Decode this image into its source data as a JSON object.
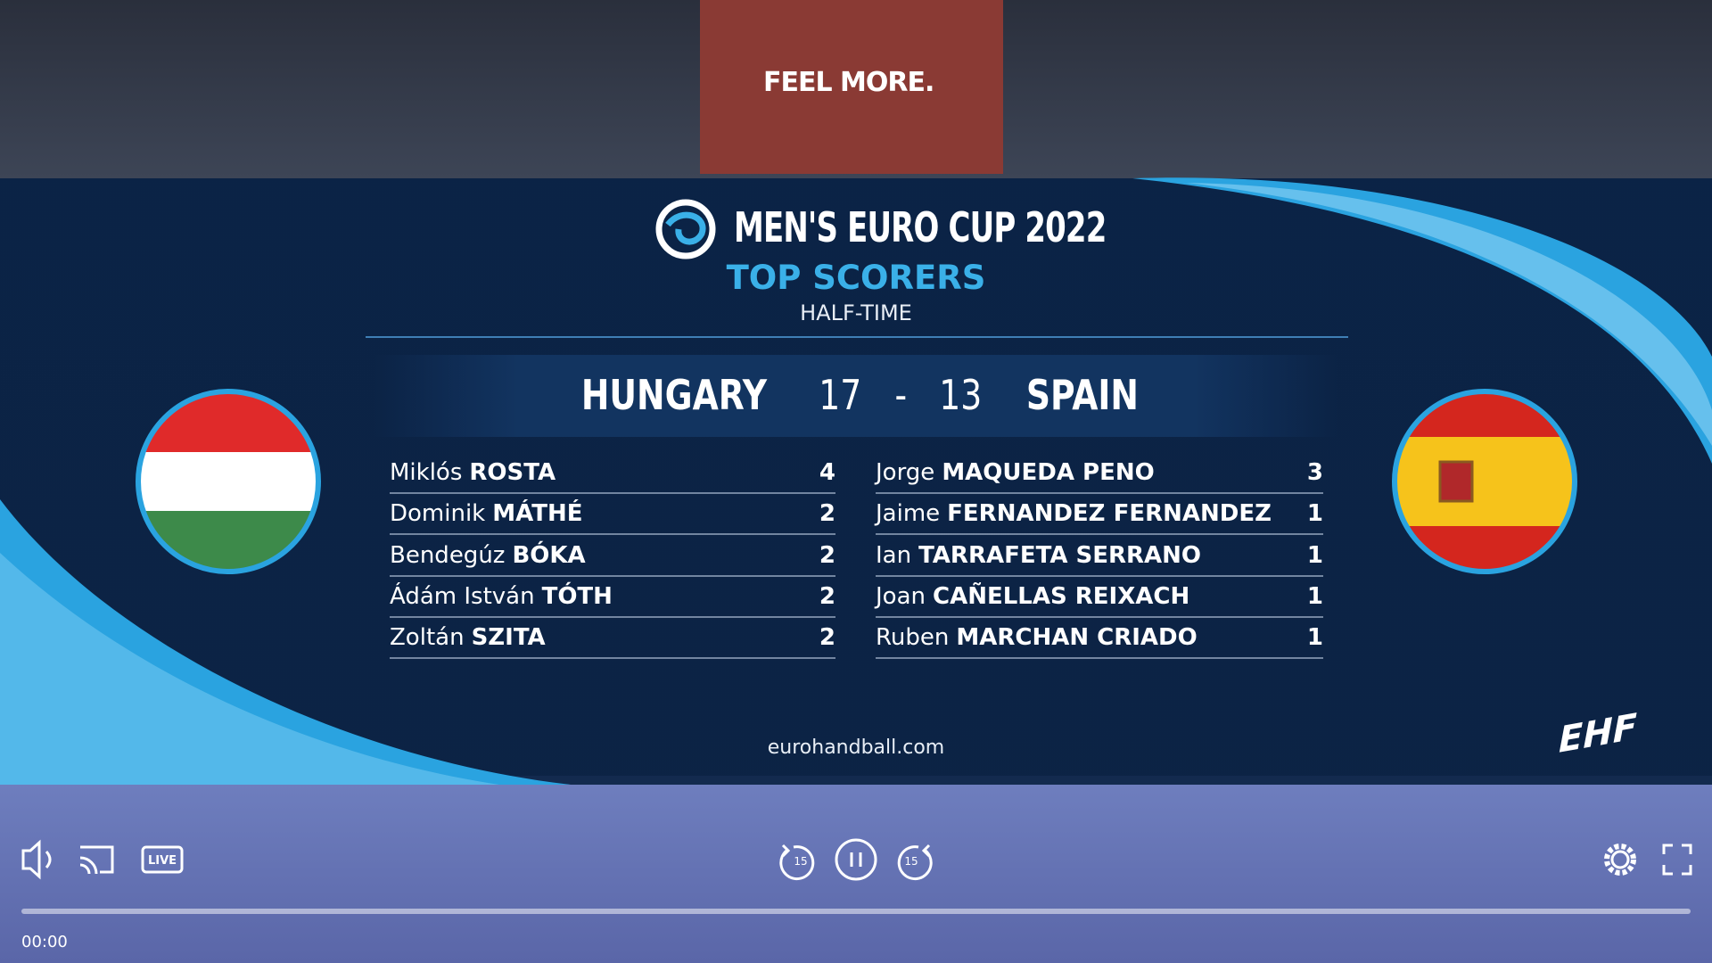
{
  "header": {
    "screen_text": "FEEL MORE.",
    "title": "MEN'S EURO CUP 2022",
    "subtitle": "TOP SCORERS",
    "phase": "HALF-TIME"
  },
  "match": {
    "home": "HUNGARY",
    "home_score": 17,
    "separator": "-",
    "away_score": 13,
    "away": "SPAIN"
  },
  "scorers": {
    "home": [
      {
        "first": "Miklós",
        "last": "ROSTA",
        "goals": 4
      },
      {
        "first": "Dominik",
        "last": "MÁTHÉ",
        "goals": 2
      },
      {
        "first": "Bendegúz",
        "last": "BÓKA",
        "goals": 2
      },
      {
        "first": "Ádám István",
        "last": "TÓTH",
        "goals": 2
      },
      {
        "first": "Zoltán",
        "last": "SZITA",
        "goals": 2
      }
    ],
    "away": [
      {
        "first": "Jorge",
        "last": "MAQUEDA PENO",
        "goals": 3
      },
      {
        "first": "Jaime",
        "last": "FERNANDEZ FERNANDEZ",
        "goals": 1
      },
      {
        "first": "Ian",
        "last": "TARRAFETA SERRANO",
        "goals": 1
      },
      {
        "first": "Joan",
        "last": "CAÑELLAS REIXACH",
        "goals": 1
      },
      {
        "first": "Ruben",
        "last": "MARCHAN CRIADO",
        "goals": 1
      }
    ]
  },
  "footer": {
    "website": "eurohandball.com",
    "logo": "EHF"
  },
  "player": {
    "live": "LIVE",
    "skip_back": "15",
    "skip_forward": "15",
    "time": "00:00"
  }
}
